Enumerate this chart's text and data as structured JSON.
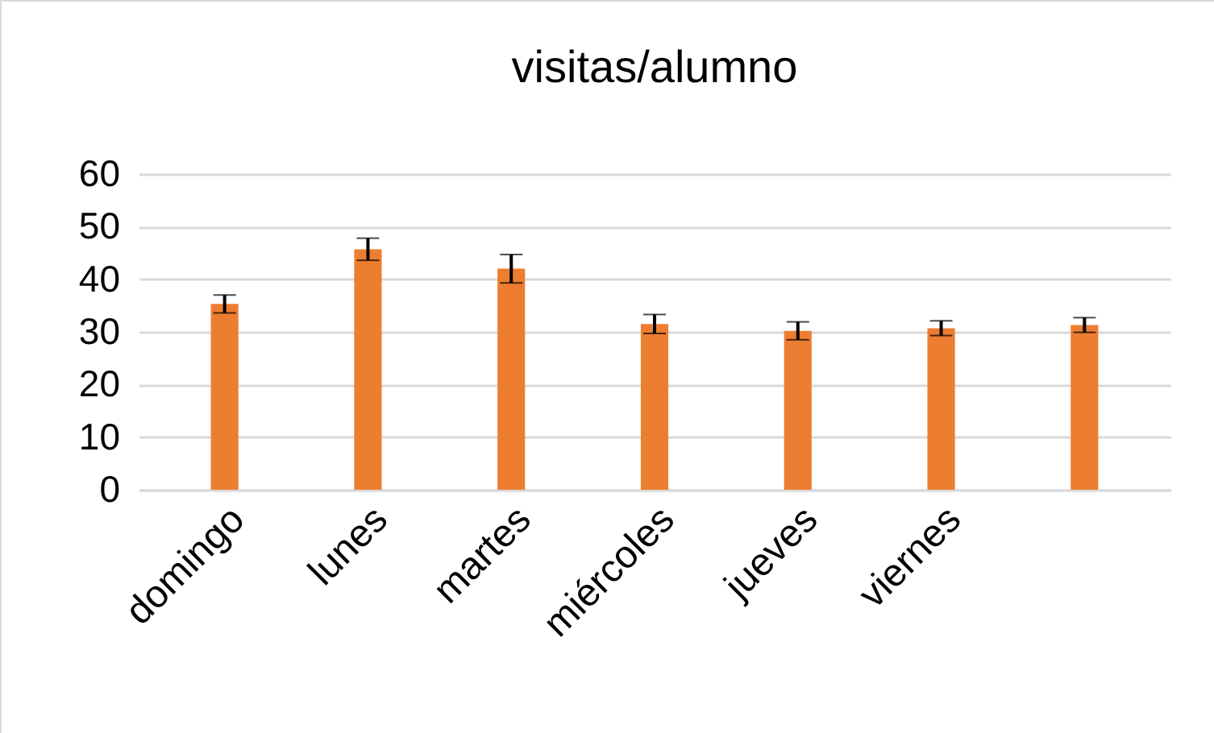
{
  "chart_data": {
    "type": "bar",
    "title": "visitas/alumno",
    "categories": [
      "domingo",
      "lunes",
      "martes",
      "miércoles",
      "jueves",
      "viernes",
      null
    ],
    "values": [
      35.3,
      45.7,
      42.0,
      31.5,
      30.2,
      30.7,
      31.3
    ],
    "errors": [
      1.7,
      2.1,
      2.7,
      1.8,
      1.7,
      1.4,
      1.4
    ],
    "color": "#ed7d31",
    "ylim": [
      0,
      60
    ],
    "yticks": [
      0,
      10,
      20,
      30,
      40,
      50,
      60
    ],
    "grid": "y"
  }
}
